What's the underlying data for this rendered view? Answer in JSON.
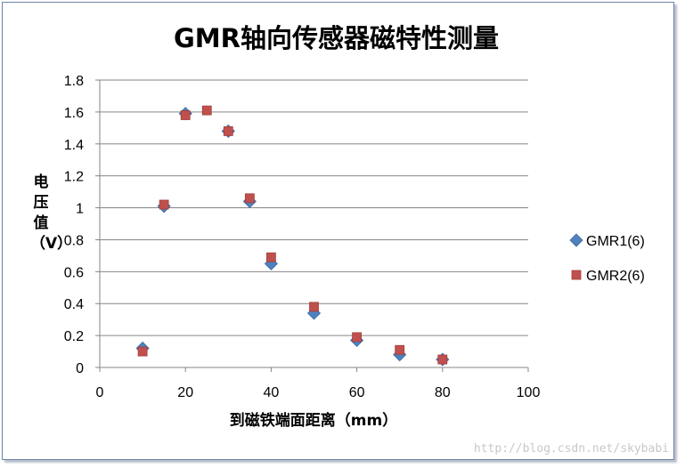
{
  "chart_data": {
    "type": "scatter",
    "title": "GMR轴向传感器磁特性测量",
    "xlabel": "到磁铁端面距离（mm）",
    "ylabel": "电压值（V）",
    "xlim": [
      0,
      100
    ],
    "ylim": [
      0,
      1.8
    ],
    "xticks": [
      "0",
      "20",
      "40",
      "60",
      "80",
      "100"
    ],
    "yticks": [
      "0",
      "0.2",
      "0.4",
      "0.6",
      "0.8",
      "1",
      "1.2",
      "1.4",
      "1.6",
      "1.8"
    ],
    "grid": "horizontal",
    "legend_position": "right",
    "series": [
      {
        "name": "GMR1(6)",
        "marker": "diamond",
        "color": "#4f81bd",
        "x": [
          10,
          15,
          20,
          30,
          35,
          40,
          50,
          60,
          70,
          80
        ],
        "y": [
          0.12,
          1.01,
          1.59,
          1.48,
          1.04,
          0.65,
          0.34,
          0.17,
          0.08,
          0.05
        ]
      },
      {
        "name": "GMR2(6)",
        "marker": "square",
        "color": "#c0504d",
        "x": [
          10,
          15,
          20,
          25,
          30,
          35,
          40,
          50,
          60,
          70,
          80
        ],
        "y": [
          0.1,
          1.02,
          1.58,
          1.61,
          1.48,
          1.06,
          0.69,
          0.38,
          0.19,
          0.11,
          0.05
        ]
      }
    ]
  },
  "watermark": "http://blog.csdn.net/skybabi"
}
